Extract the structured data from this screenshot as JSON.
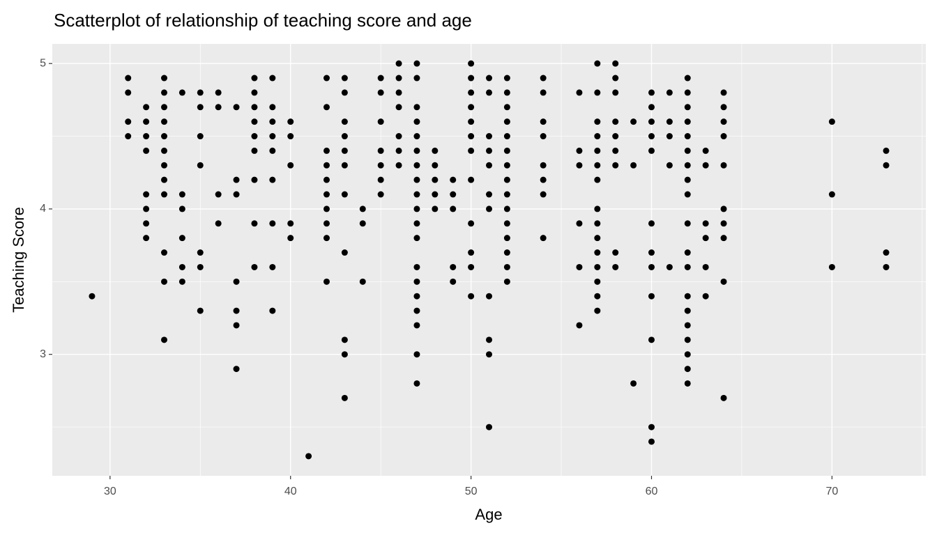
{
  "chart_data": {
    "type": "scatter",
    "title": "Scatterplot of relationship of teaching score and age",
    "x_label": "Age",
    "y_label": "Teaching Score",
    "xlim": [
      26.8,
      75.2
    ],
    "ylim": [
      2.165,
      5.135
    ],
    "xticks": [
      30,
      40,
      50,
      60,
      70
    ],
    "yticks": [
      3,
      4,
      5
    ],
    "x_minor_grid": [
      35,
      45,
      55,
      65,
      75
    ],
    "y_minor_grid": [
      2.5,
      3.5,
      4.5
    ],
    "grid": true,
    "color": "#000000",
    "x": [
      29,
      31,
      31,
      31,
      31,
      32,
      32,
      32,
      32,
      32,
      32,
      32,
      32,
      33,
      33,
      33,
      33,
      33,
      33,
      33,
      33,
      33,
      33,
      33,
      33,
      34,
      34,
      34,
      34,
      34,
      34,
      35,
      35,
      35,
      35,
      35,
      35,
      35,
      36,
      36,
      36,
      36,
      37,
      37,
      37,
      37,
      37,
      37,
      37,
      38,
      38,
      38,
      38,
      38,
      38,
      38,
      38,
      38,
      39,
      39,
      39,
      39,
      39,
      39,
      39,
      39,
      39,
      40,
      40,
      40,
      40,
      40,
      41,
      42,
      42,
      42,
      42,
      42,
      42,
      42,
      42,
      42,
      42,
      43,
      43,
      43,
      43,
      43,
      43,
      43,
      43,
      43,
      43,
      43,
      44,
      44,
      44,
      45,
      45,
      45,
      45,
      45,
      45,
      45,
      46,
      46,
      46,
      46,
      46,
      46,
      46,
      47,
      47,
      47,
      47,
      47,
      47,
      47,
      47,
      47,
      47,
      47,
      47,
      47,
      47,
      47,
      47,
      47,
      47,
      47,
      48,
      48,
      48,
      48,
      48,
      49,
      49,
      49,
      49,
      49,
      50,
      50,
      50,
      50,
      50,
      50,
      50,
      50,
      50,
      50,
      50,
      50,
      51,
      51,
      51,
      51,
      51,
      51,
      51,
      51,
      51,
      51,
      51,
      52,
      52,
      52,
      52,
      52,
      52,
      52,
      52,
      52,
      52,
      52,
      52,
      52,
      52,
      52,
      54,
      54,
      54,
      54,
      54,
      54,
      54,
      54,
      56,
      56,
      56,
      56,
      56,
      56,
      57,
      57,
      57,
      57,
      57,
      57,
      57,
      57,
      57,
      57,
      57,
      57,
      57,
      57,
      57,
      58,
      58,
      58,
      58,
      58,
      58,
      58,
      58,
      58,
      59,
      59,
      59,
      60,
      60,
      60,
      60,
      60,
      60,
      60,
      60,
      60,
      60,
      60,
      60,
      61,
      61,
      61,
      61,
      61,
      62,
      62,
      62,
      62,
      62,
      62,
      62,
      62,
      62,
      62,
      62,
      62,
      62,
      62,
      62,
      62,
      62,
      62,
      62,
      63,
      63,
      63,
      63,
      63,
      63,
      64,
      64,
      64,
      64,
      64,
      64,
      64,
      64,
      64,
      64,
      70,
      70,
      70,
      73,
      73,
      73,
      73
    ],
    "y": [
      3.4,
      4.9,
      4.8,
      4.6,
      4.5,
      4.7,
      4.6,
      4.5,
      4.4,
      4.1,
      4.0,
      3.9,
      3.8,
      4.9,
      4.8,
      4.7,
      4.6,
      4.5,
      4.4,
      4.3,
      4.2,
      4.1,
      3.7,
      3.5,
      3.1,
      4.8,
      4.1,
      4.0,
      3.8,
      3.6,
      3.5,
      4.8,
      4.7,
      4.5,
      4.3,
      3.7,
      3.6,
      3.3,
      4.8,
      4.7,
      4.1,
      3.9,
      4.7,
      4.2,
      4.1,
      3.5,
      3.3,
      3.2,
      2.9,
      4.9,
      4.8,
      4.7,
      4.6,
      4.5,
      4.4,
      4.2,
      3.9,
      3.6,
      4.9,
      4.7,
      4.6,
      4.5,
      4.4,
      4.2,
      3.9,
      3.6,
      3.3,
      4.6,
      4.5,
      4.3,
      3.9,
      3.8,
      2.3,
      4.9,
      4.7,
      4.4,
      4.3,
      4.2,
      4.1,
      4.0,
      3.9,
      3.8,
      3.5,
      4.9,
      4.8,
      4.6,
      4.5,
      4.4,
      4.3,
      4.1,
      3.7,
      3.1,
      3.0,
      2.7,
      4.0,
      3.9,
      3.5,
      4.9,
      4.8,
      4.6,
      4.4,
      4.3,
      4.2,
      4.1,
      5.0,
      4.9,
      4.8,
      4.7,
      4.5,
      4.4,
      4.3,
      5.0,
      4.9,
      4.7,
      4.6,
      4.5,
      4.4,
      4.3,
      4.2,
      4.1,
      4.0,
      3.9,
      3.8,
      3.6,
      3.5,
      3.4,
      3.3,
      3.2,
      3.0,
      2.8,
      4.4,
      4.3,
      4.2,
      4.1,
      4.0,
      4.2,
      4.1,
      4.0,
      3.6,
      3.5,
      5.0,
      4.9,
      4.8,
      4.7,
      4.6,
      4.5,
      4.4,
      4.2,
      3.9,
      3.7,
      3.6,
      3.4,
      4.9,
      4.8,
      4.5,
      4.4,
      4.3,
      4.1,
      4.0,
      3.4,
      3.1,
      3.0,
      2.5,
      4.9,
      4.8,
      4.7,
      4.6,
      4.5,
      4.4,
      4.3,
      4.2,
      4.1,
      4.0,
      3.9,
      3.8,
      3.7,
      3.6,
      3.5,
      4.9,
      4.8,
      4.6,
      4.5,
      4.3,
      4.2,
      4.1,
      3.8,
      4.8,
      4.4,
      4.3,
      3.9,
      3.6,
      3.2,
      5.0,
      4.8,
      4.6,
      4.5,
      4.4,
      4.3,
      4.2,
      4.0,
      3.9,
      3.8,
      3.7,
      3.6,
      3.5,
      3.4,
      3.3,
      5.0,
      4.9,
      4.8,
      4.6,
      4.5,
      4.4,
      4.3,
      3.7,
      3.6,
      4.6,
      4.3,
      2.8,
      4.8,
      4.7,
      4.6,
      4.5,
      4.4,
      3.9,
      3.7,
      3.6,
      3.4,
      3.1,
      2.5,
      2.4,
      4.8,
      4.6,
      4.5,
      4.3,
      3.6,
      4.9,
      4.8,
      4.7,
      4.6,
      4.5,
      4.4,
      4.3,
      4.2,
      4.1,
      3.9,
      3.7,
      3.6,
      3.4,
      3.3,
      3.2,
      3.1,
      3.0,
      2.9,
      2.8,
      4.4,
      4.3,
      3.9,
      3.8,
      3.6,
      3.4,
      4.8,
      4.7,
      4.6,
      4.5,
      4.3,
      4.0,
      3.9,
      3.8,
      3.5,
      2.7,
      4.6,
      4.1,
      3.6,
      4.4,
      4.3,
      3.7,
      3.6
    ]
  }
}
